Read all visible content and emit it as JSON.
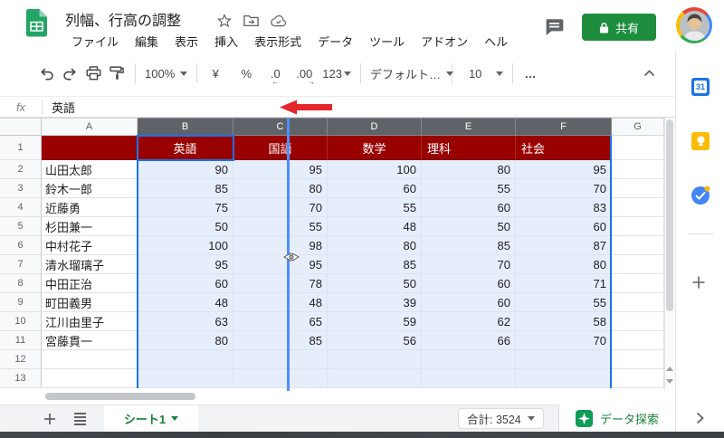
{
  "titlebar": {
    "title": "列幅、行高の調整",
    "menus": [
      "ファイル",
      "編集",
      "表示",
      "挿入",
      "表示形式",
      "データ",
      "ツール",
      "アドオン",
      "ヘル"
    ],
    "share_label": "共有"
  },
  "toolbar": {
    "zoom_level": "100%",
    "currency_label": "¥",
    "percent_label": "%",
    "decrease_decimal_label": ".0",
    "increase_decimal_label": ".00",
    "decrease_decimal_arrow": "←",
    "increase_decimal_arrow": "→",
    "number_format_label": "123",
    "font_name": "デフォルト…",
    "font_size": "10",
    "more_label": "…"
  },
  "formula_bar": {
    "fx_label": "fx",
    "value": "英語"
  },
  "grid": {
    "col_letters": [
      "A",
      "B",
      "C",
      "D",
      "E",
      "F",
      "G"
    ],
    "selected_columns": [
      "B",
      "C",
      "D",
      "E",
      "F"
    ],
    "row_numbers": [
      1,
      2,
      3,
      4,
      5,
      6,
      7,
      8,
      9,
      10,
      11,
      12,
      13
    ],
    "header_row": [
      "",
      "英語",
      "国語",
      "数学",
      "理科",
      "社会"
    ],
    "header_align": [
      "center",
      "center",
      "center",
      "left",
      "left"
    ],
    "rows": [
      {
        "name": "山田太郎",
        "values": [
          "90",
          "95",
          "100",
          "80",
          "95"
        ]
      },
      {
        "name": "鈴木一郎",
        "values": [
          "85",
          "80",
          "60",
          "55",
          "70"
        ]
      },
      {
        "name": "近藤勇",
        "values": [
          "75",
          "70",
          "55",
          "60",
          "83"
        ]
      },
      {
        "name": "杉田兼一",
        "values": [
          "50",
          "55",
          "48",
          "50",
          "60"
        ]
      },
      {
        "name": "中村花子",
        "values": [
          "100",
          "98",
          "80",
          "85",
          "87"
        ]
      },
      {
        "name": "清水瑠璃子",
        "values": [
          "95",
          "95",
          "85",
          "70",
          "80"
        ]
      },
      {
        "name": "中田正治",
        "values": [
          "60",
          "78",
          "50",
          "60",
          "71"
        ]
      },
      {
        "name": "町田義男",
        "values": [
          "48",
          "48",
          "39",
          "60",
          "55"
        ]
      },
      {
        "name": "江川由里子",
        "values": [
          "63",
          "65",
          "59",
          "62",
          "58"
        ]
      },
      {
        "name": "宮藤貫一",
        "values": [
          "80",
          "85",
          "56",
          "66",
          "70"
        ]
      }
    ],
    "empty_row_numbers": [
      12,
      13
    ]
  },
  "bottombar": {
    "sheet_tab_label": "シート1",
    "sum_label": "合計: 3524",
    "explore_label": "データ探索"
  },
  "side_panel_icons": [
    "google-calendar",
    "google-keep",
    "google-tasks",
    "add"
  ],
  "colors": {
    "header_row_bg": "#990000",
    "selection_fill": "#e7eefb",
    "selection_border": "#1a73e8",
    "drag_line": "#4d90fe",
    "arrow_red": "#e5252a",
    "share_green": "#1e8e3e",
    "accent_green": "#188038",
    "selected_header_bg": "#5f6368"
  }
}
